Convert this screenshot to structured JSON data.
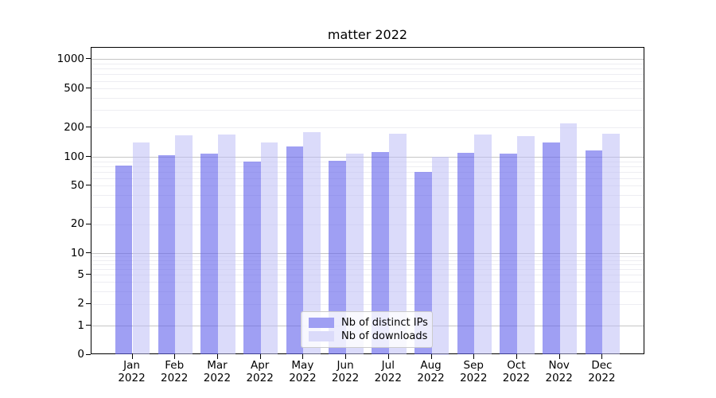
{
  "title": "matter 2022",
  "legend": {
    "items": [
      {
        "label": "Nb of distinct IPs",
        "color": "#9f9ff3"
      },
      {
        "label": "Nb of downloads",
        "color": "#dbdbfa"
      }
    ]
  },
  "chart_data": {
    "type": "bar",
    "title": "matter 2022",
    "categories": [
      "Jan 2022",
      "Feb 2022",
      "Mar 2022",
      "Apr 2022",
      "May 2022",
      "Jun 2022",
      "Jul 2022",
      "Aug 2022",
      "Sep 2022",
      "Oct 2022",
      "Nov 2022",
      "Dec 2022"
    ],
    "series": [
      {
        "name": "Nb of distinct IPs",
        "color": "#9f9ff3",
        "fill": "rgba(100,100,235,0.62)",
        "values": [
          81,
          103,
          108,
          90,
          128,
          91,
          112,
          70,
          109,
          107,
          140,
          117
        ]
      },
      {
        "name": "Nb of downloads",
        "color": "#dbdbfa",
        "fill": "rgba(190,190,246,0.55)",
        "values": [
          140,
          166,
          170,
          141,
          180,
          108,
          172,
          100,
          170,
          164,
          222,
          172
        ]
      }
    ],
    "yscale": "symlog",
    "yticks": [
      0,
      1,
      2,
      5,
      10,
      20,
      50,
      100,
      200,
      500,
      1000
    ],
    "ylim": [
      0,
      1300
    ],
    "grid": true,
    "legend_position": "lower center",
    "colors": {
      "axis": "#000000",
      "major_grid": "#c6c6c6",
      "minor_grid": "#ededf2"
    }
  }
}
